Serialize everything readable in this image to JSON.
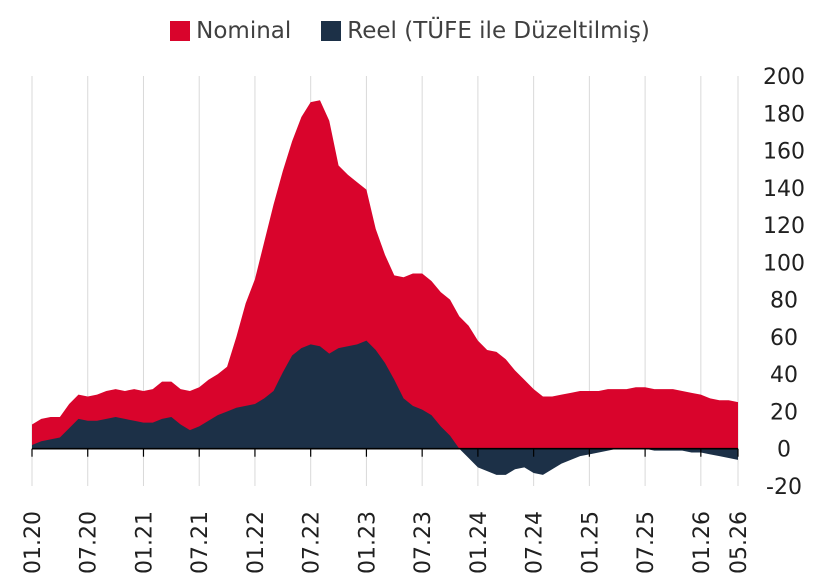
{
  "chart_data": {
    "type": "area",
    "title": "",
    "xlabel": "",
    "ylabel": "",
    "ylim": [
      -20,
      200
    ],
    "yticks": [
      -20,
      0,
      20,
      40,
      60,
      80,
      100,
      120,
      140,
      160,
      180,
      200
    ],
    "x_tick_labels": [
      "01.20",
      "07.20",
      "01.21",
      "07.21",
      "01.22",
      "07.22",
      "01.23",
      "07.23",
      "01.24",
      "07.24",
      "01.25",
      "07.25",
      "01.26",
      "05.26"
    ],
    "x": [
      "01.20",
      "02.20",
      "03.20",
      "04.20",
      "05.20",
      "06.20",
      "07.20",
      "08.20",
      "09.20",
      "10.20",
      "11.20",
      "12.20",
      "01.21",
      "02.21",
      "03.21",
      "04.21",
      "05.21",
      "06.21",
      "07.21",
      "08.21",
      "09.21",
      "10.21",
      "11.21",
      "12.21",
      "01.22",
      "02.22",
      "03.22",
      "04.22",
      "05.22",
      "06.22",
      "07.22",
      "08.22",
      "09.22",
      "10.22",
      "11.22",
      "12.22",
      "01.23",
      "02.23",
      "03.23",
      "04.23",
      "05.23",
      "06.23",
      "07.23",
      "08.23",
      "09.23",
      "10.23",
      "11.23",
      "12.23",
      "01.24",
      "02.24",
      "03.24",
      "04.24",
      "05.24",
      "06.24",
      "07.24",
      "08.24",
      "09.24",
      "10.24",
      "11.24",
      "12.24",
      "01.25",
      "02.25",
      "03.25",
      "04.25",
      "05.25",
      "06.25",
      "07.25",
      "08.25",
      "09.25",
      "10.25",
      "11.25",
      "12.25",
      "01.26",
      "02.26",
      "03.26",
      "04.26",
      "05.26"
    ],
    "series": [
      {
        "name": "Nominal",
        "color": "#d9042c",
        "values": [
          13,
          16,
          17,
          17,
          24,
          29,
          28,
          29,
          31,
          32,
          31,
          32,
          31,
          32,
          36,
          36,
          32,
          31,
          33,
          37,
          40,
          44,
          60,
          78,
          91,
          111,
          131,
          149,
          165,
          178,
          186,
          187,
          176,
          152,
          147,
          143,
          139,
          118,
          104,
          93,
          92,
          94,
          94,
          90,
          84,
          80,
          71,
          66,
          58,
          53,
          52,
          48,
          42,
          37,
          32,
          28,
          28,
          29,
          30,
          31,
          31,
          31,
          32,
          32,
          32,
          33,
          33,
          32,
          32,
          32,
          31,
          30,
          29,
          27,
          26,
          26,
          25
        ]
      },
      {
        "name": "Reel (TÜFE ile Düzeltilmiş)",
        "color": "#1c3047",
        "values": [
          2,
          4,
          5,
          6,
          11,
          16,
          15,
          15,
          16,
          17,
          16,
          15,
          14,
          14,
          16,
          17,
          13,
          10,
          12,
          15,
          18,
          20,
          22,
          23,
          24,
          27,
          31,
          41,
          50,
          54,
          56,
          55,
          51,
          54,
          55,
          56,
          58,
          53,
          46,
          37,
          27,
          23,
          21,
          18,
          12,
          7,
          0,
          -5,
          -10,
          -12,
          -14,
          -14,
          -11,
          -10,
          -13,
          -14,
          -11,
          -8,
          -6,
          -4,
          -3,
          -2,
          -1,
          0,
          0,
          0,
          0,
          -1,
          -1,
          -1,
          -1,
          -2,
          -2,
          -3,
          -4,
          -5,
          -6
        ]
      }
    ],
    "grid": true,
    "legend_position": "top-center"
  }
}
